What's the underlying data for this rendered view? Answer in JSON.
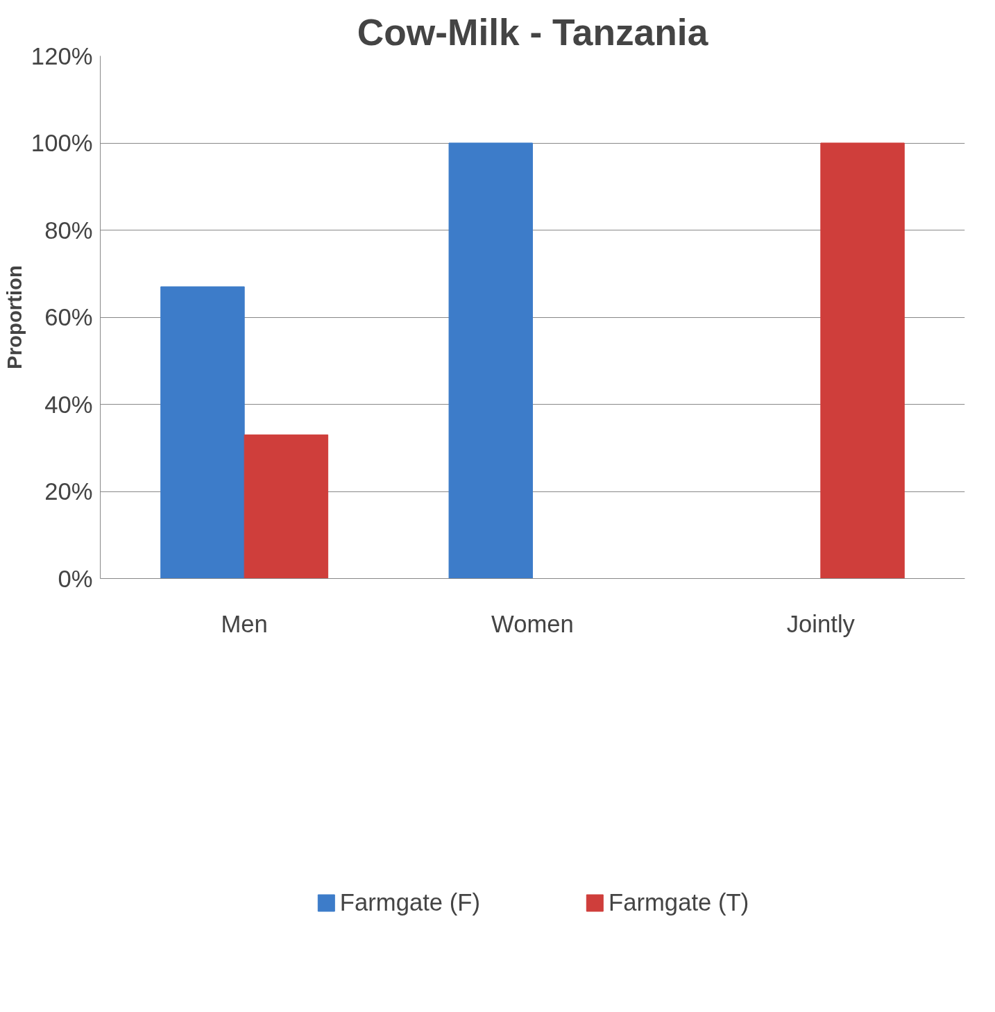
{
  "chart_data": {
    "type": "bar",
    "title": "Cow-Milk - Tanzania",
    "ylabel": "Proportion",
    "categories": [
      "Men",
      "Women",
      "Jointly"
    ],
    "series": [
      {
        "name": "Farmgate (F)",
        "color": "#3d7cc9",
        "values": [
          67,
          100,
          0
        ]
      },
      {
        "name": "Farmgate (T)",
        "color": "#cf3e3b",
        "values": [
          33,
          0,
          100
        ]
      }
    ],
    "ylim": [
      0,
      120
    ],
    "yticks": [
      {
        "value": 0,
        "label": "0%"
      },
      {
        "value": 20,
        "label": "20%"
      },
      {
        "value": 40,
        "label": "40%"
      },
      {
        "value": 60,
        "label": "60%"
      },
      {
        "value": 80,
        "label": "80%"
      },
      {
        "value": 100,
        "label": "100%"
      },
      {
        "value": 120,
        "label": "120%"
      }
    ],
    "grid": "y",
    "legend": "bottom"
  }
}
